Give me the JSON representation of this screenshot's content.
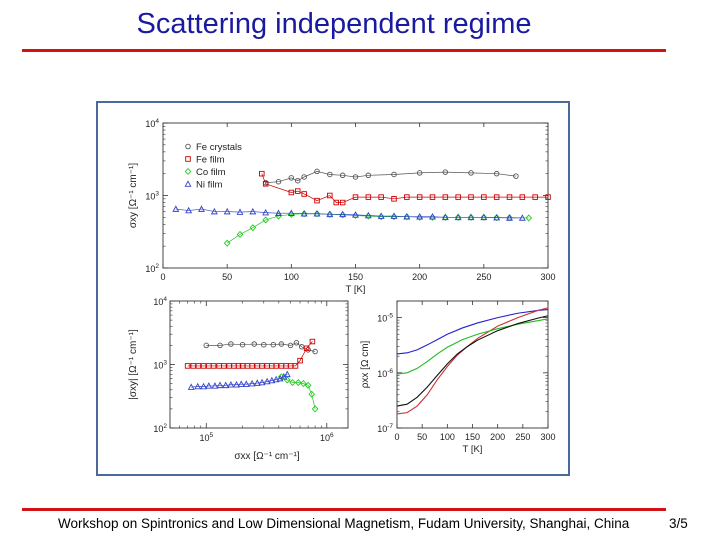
{
  "slide": {
    "title": "Scattering independent regime",
    "footer": "Workshop on Spintronics and Low Dimensional Magnetism, Fudam University, Shanghai, China",
    "page": "3/5",
    "colors": {
      "title": "#1a1aa0",
      "rule": "#d11313",
      "frame": "#4a6a9c"
    }
  },
  "chart_data": [
    {
      "type": "scatter",
      "panel": "top",
      "xlabel": "T [K]",
      "ylabel": "σxy [Ω⁻¹ cm⁻¹]",
      "xlim": [
        0,
        300
      ],
      "ylim": [
        100,
        10000
      ],
      "yscale": "log",
      "xticks": [
        "0",
        "50",
        "100",
        "150",
        "200",
        "250",
        "300"
      ],
      "yticks": [
        {
          "v": 100,
          "base": "10",
          "exp": "2"
        },
        {
          "v": 1000,
          "base": "10",
          "exp": "3"
        },
        {
          "v": 10000,
          "base": "10",
          "exp": "4"
        }
      ],
      "legend_position": "top-left",
      "series": [
        {
          "name": "Fe crystals",
          "color": "#555555",
          "marker": "circle",
          "x": [
            80,
            90,
            100,
            105,
            110,
            120,
            130,
            140,
            150,
            160,
            180,
            200,
            220,
            240,
            260,
            275
          ],
          "y": [
            1500,
            1550,
            1750,
            1600,
            1800,
            2150,
            1950,
            1900,
            1800,
            1900,
            1950,
            2050,
            2100,
            2050,
            2000,
            1850
          ]
        },
        {
          "name": "Fe film",
          "color": "#cc0000",
          "marker": "square",
          "x": [
            77,
            80,
            100,
            105,
            110,
            120,
            130,
            135,
            140,
            150,
            160,
            170,
            180,
            190,
            200,
            210,
            220,
            230,
            240,
            250,
            260,
            270,
            280,
            290,
            300
          ],
          "y": [
            2000,
            1450,
            1100,
            1150,
            1050,
            850,
            1000,
            800,
            800,
            950,
            950,
            950,
            900,
            950,
            950,
            950,
            950,
            950,
            950,
            950,
            950,
            950,
            950,
            950,
            950
          ]
        },
        {
          "name": "Co film",
          "color": "#22cc22",
          "marker": "diamond",
          "x": [
            50,
            60,
            70,
            80,
            90,
            100,
            110,
            120,
            130,
            140,
            150,
            160,
            170,
            180,
            190,
            200,
            210,
            220,
            230,
            240,
            250,
            260,
            270,
            285
          ],
          "y": [
            220,
            290,
            360,
            460,
            520,
            550,
            560,
            560,
            550,
            540,
            530,
            520,
            510,
            510,
            510,
            500,
            500,
            500,
            500,
            500,
            500,
            495,
            495,
            490
          ]
        },
        {
          "name": "Ni film",
          "color": "#3344cc",
          "marker": "triangle",
          "x": [
            10,
            20,
            30,
            40,
            50,
            60,
            70,
            80,
            90,
            100,
            110,
            120,
            130,
            140,
            150,
            160,
            170,
            180,
            190,
            200,
            210,
            220,
            230,
            240,
            250,
            260,
            270,
            280
          ],
          "y": [
            650,
            620,
            650,
            600,
            600,
            590,
            600,
            580,
            570,
            570,
            560,
            560,
            550,
            550,
            540,
            530,
            520,
            520,
            510,
            510,
            510,
            500,
            500,
            500,
            500,
            495,
            490,
            490
          ]
        }
      ]
    },
    {
      "type": "scatter",
      "panel": "bottom-left",
      "xlabel": "σxx [Ω⁻¹ cm⁻¹]",
      "ylabel": "|σxy| [Ω⁻¹ cm⁻¹]",
      "xscale": "log",
      "yscale": "log",
      "xlim": [
        50000,
        1500000
      ],
      "ylim": [
        100,
        10000
      ],
      "xticks": [
        {
          "v": 100000,
          "base": "10",
          "exp": "5"
        },
        {
          "v": 1000000,
          "base": "10",
          "exp": "6"
        }
      ],
      "yticks": [
        {
          "v": 100,
          "base": "10",
          "exp": "2"
        },
        {
          "v": 1000,
          "base": "10",
          "exp": "3"
        },
        {
          "v": 10000,
          "base": "10",
          "exp": "4"
        }
      ],
      "series": [
        {
          "name": "Fe crystals",
          "color": "#555555",
          "marker": "circle",
          "x": [
            100000,
            130000,
            160000,
            200000,
            250000,
            300000,
            360000,
            420000,
            500000,
            560000,
            620000,
            700000,
            800000
          ],
          "y": [
            2000,
            2000,
            2100,
            2050,
            2100,
            2050,
            2050,
            2100,
            2000,
            2200,
            1900,
            1700,
            1600
          ]
        },
        {
          "name": "Fe film",
          "color": "#cc0000",
          "marker": "square",
          "x": [
            70000,
            78000,
            86000,
            95000,
            105000,
            115000,
            128000,
            140000,
            155000,
            170000,
            185000,
            200000,
            220000,
            240000,
            265000,
            290000,
            320000,
            350000,
            380000,
            420000,
            460000,
            500000,
            550000,
            600000,
            680000,
            760000
          ],
          "y": [
            950,
            950,
            950,
            950,
            950,
            950,
            950,
            950,
            950,
            950,
            950,
            950,
            950,
            950,
            950,
            950,
            950,
            950,
            950,
            950,
            950,
            950,
            950,
            1150,
            1800,
            2300
          ]
        },
        {
          "name": "Co film",
          "color": "#22cc22",
          "marker": "diamond",
          "x": [
            420000,
            470000,
            520000,
            580000,
            640000,
            700000,
            750000,
            800000
          ],
          "y": [
            640,
            570,
            520,
            520,
            500,
            470,
            340,
            200
          ]
        },
        {
          "name": "Ni film",
          "color": "#3344cc",
          "marker": "triangle",
          "x": [
            75000,
            85000,
            95000,
            105000,
            118000,
            130000,
            145000,
            160000,
            178000,
            195000,
            215000,
            240000,
            265000,
            290000,
            320000,
            350000,
            380000,
            410000,
            440000,
            470000
          ],
          "y": [
            440,
            450,
            450,
            460,
            460,
            470,
            470,
            480,
            480,
            490,
            490,
            500,
            510,
            520,
            540,
            560,
            580,
            600,
            640,
            700
          ]
        }
      ]
    },
    {
      "type": "line",
      "panel": "bottom-right",
      "xlabel": "T [K]",
      "ylabel": "ρxx [Ω cm]",
      "xlim": [
        0,
        300
      ],
      "ylim": [
        1e-07,
        2e-05
      ],
      "yscale": "log",
      "xticks": [
        "0",
        "50",
        "100",
        "150",
        "200",
        "250",
        "300"
      ],
      "yticks": [
        {
          "v": 1e-07,
          "base": "10",
          "exp": "-7"
        },
        {
          "v": 1e-06,
          "base": "10",
          "exp": "-6"
        },
        {
          "v": 1e-05,
          "base": "10",
          "exp": "-5"
        }
      ],
      "series": [
        {
          "color": "#2222cc",
          "x": [
            0,
            20,
            40,
            60,
            80,
            100,
            130,
            160,
            200,
            240,
            280,
            300
          ],
          "y": [
            2.2e-06,
            2.3e-06,
            2.6e-06,
            3.2e-06,
            4e-06,
            5e-06,
            6.5e-06,
            8e-06,
            1e-05,
            1.2e-05,
            1.35e-05,
            1.4e-05
          ]
        },
        {
          "color": "#cc3333",
          "x": [
            0,
            20,
            40,
            60,
            80,
            100,
            120,
            140,
            160,
            200,
            240,
            280,
            300
          ],
          "y": [
            1.8e-07,
            1.9e-07,
            2.5e-07,
            4e-07,
            7.5e-07,
            1.3e-06,
            2.1e-06,
            3e-06,
            4.2e-06,
            7e-06,
            1e-05,
            1.35e-05,
            1.5e-05
          ]
        },
        {
          "color": "#22bb22",
          "x": [
            0,
            20,
            40,
            60,
            80,
            100,
            130,
            160,
            200,
            240,
            280,
            300
          ],
          "y": [
            9.5e-07,
            1e-06,
            1.2e-06,
            1.6e-06,
            2.2e-06,
            2.9e-06,
            4e-06,
            5e-06,
            6.3e-06,
            7.6e-06,
            8.8e-06,
            9.5e-06
          ]
        },
        {
          "color": "#111111",
          "x": [
            0,
            20,
            40,
            60,
            80,
            100,
            120,
            140,
            160,
            200,
            240,
            280,
            300
          ],
          "y": [
            2.5e-07,
            2.7e-07,
            3.6e-07,
            5.5e-07,
            9e-07,
            1.45e-06,
            2.2e-06,
            3e-06,
            3.9e-06,
            5.8e-06,
            7.8e-06,
            9.8e-06,
            1.08e-05
          ]
        }
      ]
    }
  ]
}
